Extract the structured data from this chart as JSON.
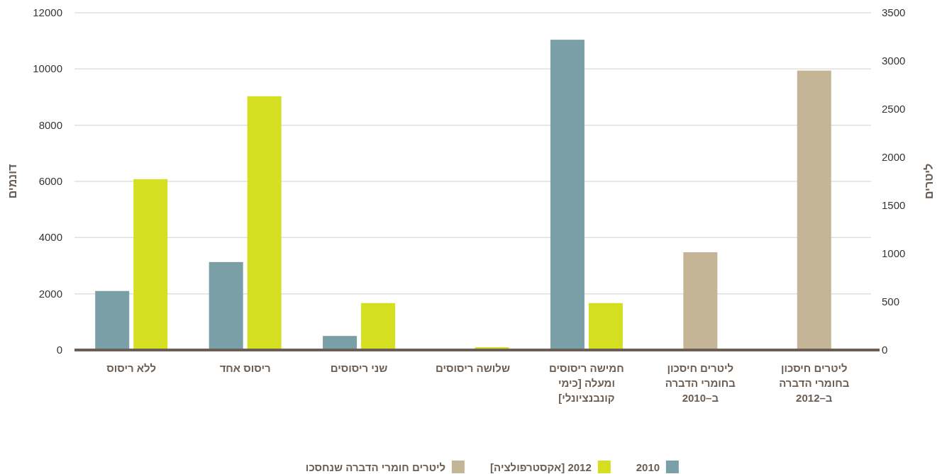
{
  "chart_data": {
    "type": "bar",
    "categories": [
      "ללא ריסוס",
      "ריסוס אחד",
      "שני ריסוסים",
      "שלושה ריסוסים",
      "חמישה ריסוסים ומעלה [כימי קונבנציונלי]",
      "ליטרים חיסכון בחומרי הדברה ב–2010",
      "ליטרים חיסכון בחומרי הדברה ב–2012"
    ],
    "series": [
      {
        "name": "2010",
        "color": "#7a9fa6",
        "values": [
          2100,
          3130,
          500,
          null,
          11040,
          null,
          null
        ]
      },
      {
        "name": "2012 [אקסטרפולציה]",
        "color": "#d5df22",
        "values": [
          6080,
          9030,
          1670,
          100,
          1670,
          null,
          null
        ]
      },
      {
        "name": "ליטרים חומרי הדברה שנחסכו",
        "color": "#c4b597",
        "axis": "y2",
        "values": [
          null,
          null,
          null,
          null,
          null,
          1015,
          2900
        ]
      }
    ],
    "ylabel": "דונמים",
    "y2label": "ליטרים",
    "ylim": [
      0,
      12000
    ],
    "yticks": [
      0,
      2000,
      4000,
      6000,
      8000,
      10000,
      12000
    ],
    "y2lim": [
      0,
      3500
    ],
    "y2ticks": [
      0,
      500,
      1000,
      1500,
      2000,
      2500,
      3000,
      3500
    ],
    "grid": "y",
    "legend": "bottom"
  }
}
